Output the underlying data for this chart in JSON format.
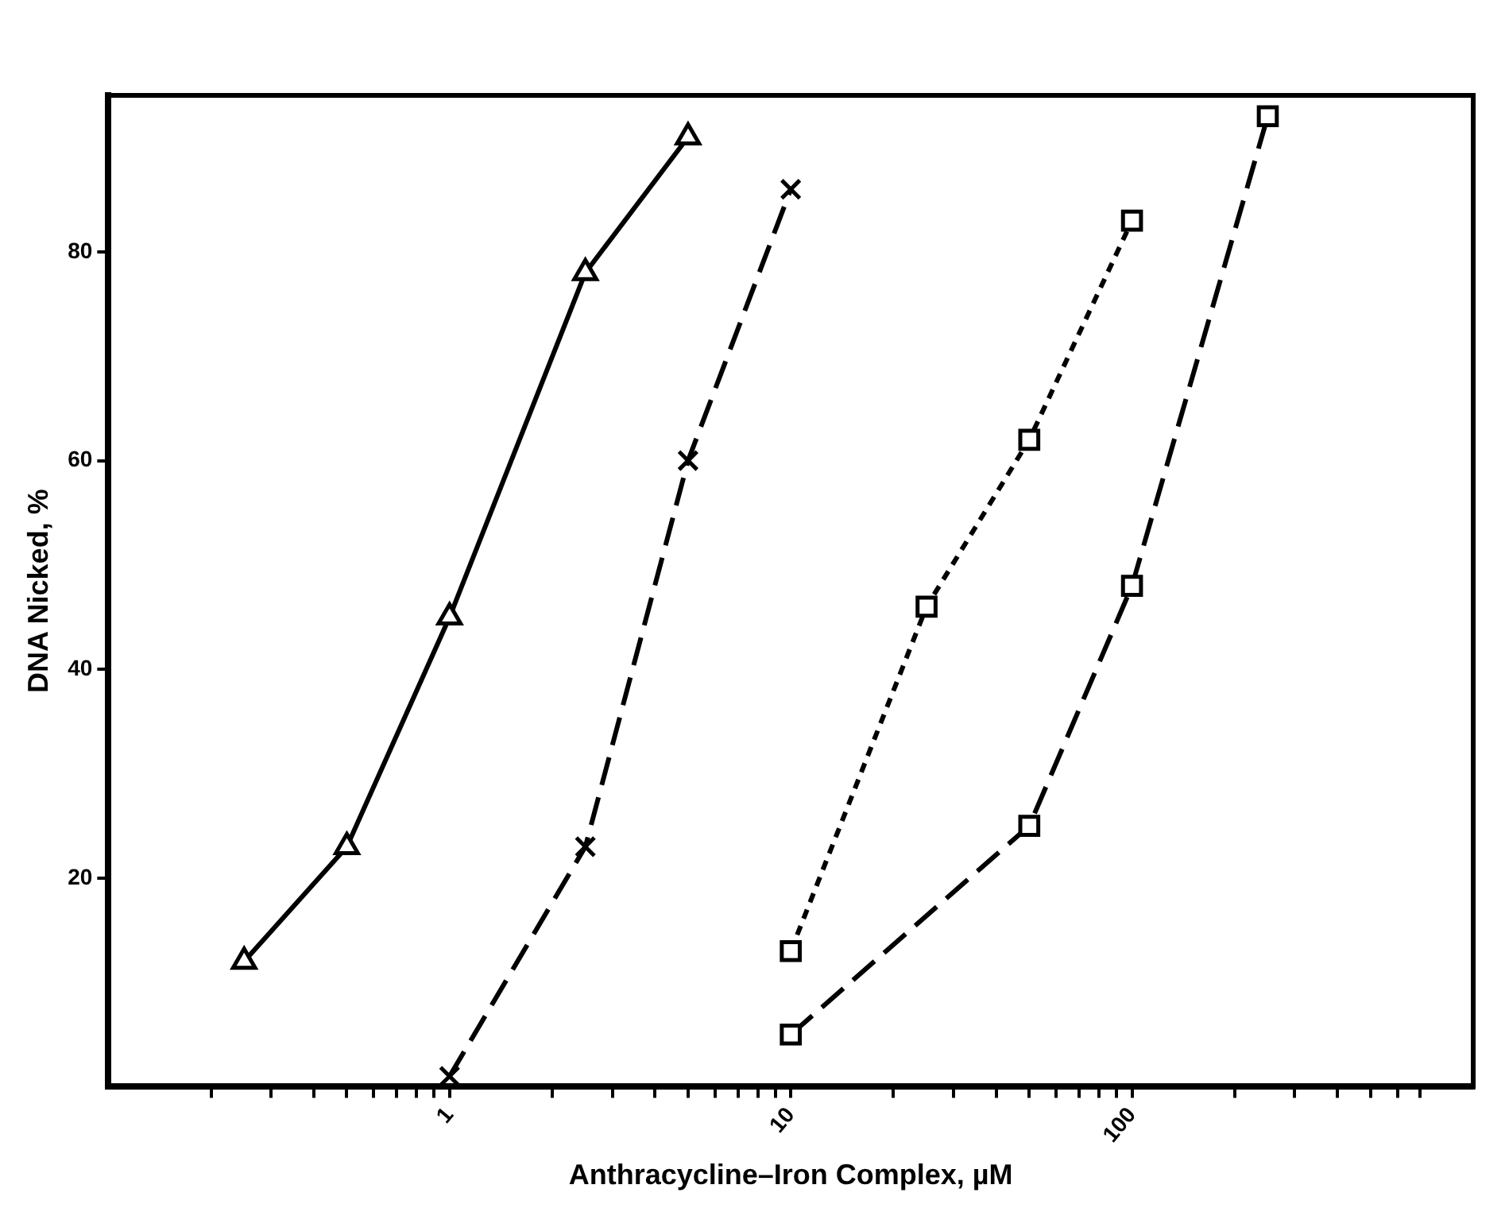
{
  "chart_data": {
    "type": "line",
    "xlabel": "Anthracycline–Iron Complex, µM",
    "ylabel": "DNA Nicked, %",
    "log": "x",
    "grid": false,
    "xlim": [
      0.1,
      1000
    ],
    "xticks": [
      {
        "value": 0.2,
        "label": null
      },
      {
        "value": 0.3,
        "label": null
      },
      {
        "value": 0.4,
        "label": null
      },
      {
        "value": 0.5,
        "label": null
      },
      {
        "value": 0.6,
        "label": null
      },
      {
        "value": 0.7,
        "label": null
      },
      {
        "value": 0.8,
        "label": null
      },
      {
        "value": 0.9,
        "label": null
      },
      1,
      {
        "value": 2,
        "label": null
      },
      {
        "value": 3,
        "label": null
      },
      {
        "value": 4,
        "label": null
      },
      {
        "value": 5,
        "label": null
      },
      {
        "value": 6,
        "label": null
      },
      {
        "value": 7,
        "label": null
      },
      {
        "value": 8,
        "label": null
      },
      {
        "value": 9,
        "label": null
      },
      10,
      {
        "value": 20,
        "label": null
      },
      {
        "value": 30,
        "label": null
      },
      {
        "value": 40,
        "label": null
      },
      {
        "value": 50,
        "label": null
      },
      {
        "value": 60,
        "label": null
      },
      {
        "value": 70,
        "label": null
      },
      {
        "value": 80,
        "label": null
      },
      {
        "value": 90,
        "label": null
      },
      100,
      {
        "value": 200,
        "label": null
      },
      {
        "value": 300,
        "label": null
      },
      {
        "value": 400,
        "label": null
      },
      {
        "value": 500,
        "label": null
      },
      {
        "value": 600,
        "label": null
      },
      {
        "value": 700,
        "label": null
      }
    ],
    "ylim": [
      0,
      95
    ],
    "yticks": [
      20,
      40,
      60,
      80
    ],
    "series": [
      {
        "color": "#000000",
        "marker": "triangle",
        "line_style": "solid",
        "x": [
          0.25,
          0.5,
          1,
          2.5,
          5
        ],
        "values": [
          12,
          23,
          45,
          78,
          91
        ]
      },
      {
        "color": "#000000",
        "marker": "cross",
        "line_style": "dashed",
        "x": [
          1,
          2.5,
          5,
          10
        ],
        "values": [
          1,
          23,
          60,
          86
        ]
      },
      {
        "color": "#000000",
        "marker": "square",
        "line_style": "dotted",
        "x": [
          10,
          25,
          50,
          100
        ],
        "values": [
          13,
          46,
          62,
          83
        ]
      },
      {
        "color": "#000000",
        "marker": "square",
        "line_style": "dashed",
        "x": [
          10,
          50,
          100,
          250
        ],
        "values": [
          5,
          25,
          48,
          93
        ]
      }
    ]
  }
}
